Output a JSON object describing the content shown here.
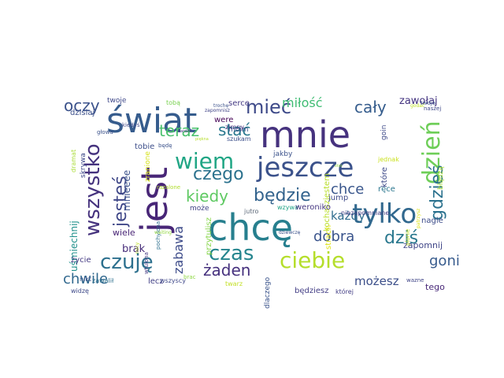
{
  "wordcloud": {
    "words": [
      {
        "text": "mnie",
        "color": "#46327e"
      },
      {
        "text": "świat",
        "color": "#365c8d"
      },
      {
        "text": "chcę",
        "color": "#277f8e"
      },
      {
        "text": "jest",
        "color": "#482677"
      },
      {
        "text": "jeszcze",
        "color": "#3b528b"
      },
      {
        "text": "tylko",
        "color": "#31688e"
      },
      {
        "text": "ciebie",
        "color": "#b5de2b"
      },
      {
        "text": "wiem",
        "color": "#21a685"
      },
      {
        "text": "czego",
        "color": "#2c728e"
      },
      {
        "text": "czuję",
        "color": "#2d708e"
      },
      {
        "text": "czas",
        "color": "#25858e"
      },
      {
        "text": "dzień",
        "color": "#6ece58"
      },
      {
        "text": "wszystko",
        "color": "#46337e"
      },
      {
        "text": "jesteś",
        "color": "#3f4788"
      },
      {
        "text": "będzie",
        "color": "#33638d"
      },
      {
        "text": "kiedy",
        "color": "#5ec962"
      },
      {
        "text": "teraz",
        "color": "#4ac16d"
      },
      {
        "text": "stać",
        "color": "#2a788e"
      },
      {
        "text": "mieć",
        "color": "#3e4a89"
      },
      {
        "text": "oczy",
        "color": "#3b528b"
      },
      {
        "text": "cały",
        "color": "#365d8d"
      },
      {
        "text": "miłość",
        "color": "#3fbc73"
      },
      {
        "text": "zawołaj",
        "color": "#453581"
      },
      {
        "text": "gdzieś",
        "color": "#2c728e"
      },
      {
        "text": "chce",
        "color": "#39568c"
      },
      {
        "text": "dziś",
        "color": "#2a788e"
      },
      {
        "text": "dobra",
        "color": "#3a548c"
      },
      {
        "text": "żaden",
        "color": "#46317e"
      },
      {
        "text": "goni",
        "color": "#375b8d"
      },
      {
        "text": "możesz",
        "color": "#3c4f8a"
      },
      {
        "text": "chwile",
        "color": "#31688e"
      },
      {
        "text": "zabawa",
        "color": "#3e4c8a"
      },
      {
        "text": "brak",
        "color": "#472d7b"
      },
      {
        "text": "mnieeee",
        "color": "#3b528b"
      },
      {
        "text": "każdy",
        "color": "#2f6c8e"
      },
      {
        "text": "uśmiechnij",
        "color": "#21918c"
      },
      {
        "text": "wzywa",
        "color": "#20a386"
      },
      {
        "text": "jutro",
        "color": "#5e6a7a"
      },
      {
        "text": "może",
        "color": "#414487"
      },
      {
        "text": "wiele",
        "color": "#482475"
      },
      {
        "text": "lecz",
        "color": "#424086"
      },
      {
        "text": "wszyscy",
        "color": "#3f4889"
      },
      {
        "text": "zapomnij",
        "color": "#404688"
      },
      {
        "text": "tego",
        "color": "#482878"
      },
      {
        "text": "będziesz",
        "color": "#433e85"
      },
      {
        "text": "dlaczego",
        "color": "#3a538b"
      },
      {
        "text": "nagle",
        "color": "#3d4d8a"
      },
      {
        "text": "przytulisz",
        "color": "#86d549"
      },
      {
        "text": "pochylona",
        "color": "#2e6f8e"
      },
      {
        "text": "wtulona",
        "color": "#443983"
      },
      {
        "text": "skrywa",
        "color": "#3e4989"
      },
      {
        "text": "dzisiaj",
        "color": "#3c508b"
      },
      {
        "text": "życie",
        "color": "#443a83"
      },
      {
        "text": "nikt",
        "color": "#3b528b"
      },
      {
        "text": "widzę",
        "color": "#3e4989"
      },
      {
        "text": "zawalił",
        "color": "#2d708e"
      },
      {
        "text": "kochaszjestem",
        "color": "#b8de29"
      },
      {
        "text": "jakby",
        "color": "#3b528b"
      },
      {
        "text": "ręce",
        "color": "#2a768e"
      },
      {
        "text": "które",
        "color": "#3e4a89"
      },
      {
        "text": "której",
        "color": "#433e85"
      },
      {
        "text": "tobie",
        "color": "#3d4e8a"
      },
      {
        "text": "were",
        "color": "#440154"
      },
      {
        "text": "moim",
        "color": "#3b528b"
      },
      {
        "text": "serce",
        "color": "#443983"
      },
      {
        "text": "tobą",
        "color": "#7ad151"
      },
      {
        "text": "twoje",
        "color": "#3f4889"
      },
      {
        "text": "zimny",
        "color": "#46307e"
      },
      {
        "text": "szukam",
        "color": "#3c4f8a"
      },
      {
        "text": "będę",
        "color": "#3b528b"
      },
      {
        "text": "jump",
        "color": "#3e4a89"
      },
      {
        "text": "weroniko",
        "color": "#453781"
      },
      {
        "text": "dziewczę",
        "color": "#3b528b"
      },
      {
        "text": "niezapomniane",
        "color": "#433d84"
      },
      {
        "text": "błądzą",
        "color": "#a2da37"
      },
      {
        "text": "strach",
        "color": "#dfe318"
      },
      {
        "text": "twarz",
        "color": "#c2df23"
      },
      {
        "text": "wazne",
        "color": "#404588"
      },
      {
        "text": "nocy",
        "color": "#c0df25"
      },
      {
        "text": "zranione",
        "color": "#d5e21a"
      },
      {
        "text": "razalone",
        "color": "#b0dd2f"
      },
      {
        "text": "dramat",
        "color": "#a8db34"
      },
      {
        "text": "głowa",
        "color": "#3b528b"
      },
      {
        "text": "kiedyś",
        "color": "#3e4989"
      },
      {
        "text": "bardzo",
        "color": "#463480"
      },
      {
        "text": "piękna",
        "color": "#b5de2b"
      },
      {
        "text": "trochę",
        "color": "#3b528b"
      },
      {
        "text": "goin",
        "color": "#3e4a89"
      },
      {
        "text": "jednak",
        "color": "#cae11f"
      },
      {
        "text": "twoja",
        "color": "#3b528b"
      },
      {
        "text": "naszej",
        "color": "#3f4889"
      },
      {
        "text": "godać",
        "color": "#bddf26"
      },
      {
        "text": "plonie",
        "color": "#c5e021"
      },
      {
        "text": "patrzysz",
        "color": "#dde318"
      },
      {
        "text": "zapomnisz",
        "color": "#414487"
      },
      {
        "text": "brac",
        "color": "#8fd744"
      },
      {
        "text": "stoi",
        "color": "#95d840"
      },
      {
        "text": "waiting",
        "color": "#93d741"
      }
    ]
  }
}
